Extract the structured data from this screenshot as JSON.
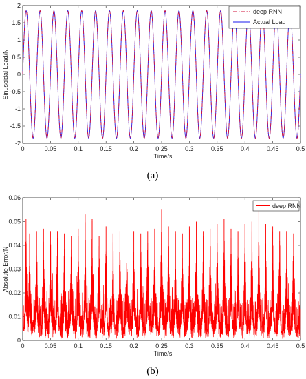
{
  "chart_data": [
    {
      "type": "line",
      "panel_label": "(a)",
      "xlabel": "Time/s",
      "ylabel": "Sinusoidal Load/N",
      "xlim": [
        0,
        0.5
      ],
      "ylim": [
        -2,
        2
      ],
      "x_ticks": [
        "0",
        "0.05",
        "0.1",
        "0.15",
        "0.2",
        "0.25",
        "0.3",
        "0.35",
        "0.4",
        "0.45",
        "0.5"
      ],
      "y_ticks": [
        "-2",
        "-1.5",
        "-1",
        "-0.5",
        "0",
        "0.5",
        "1",
        "1.5",
        "2"
      ],
      "legend_position": "top-right",
      "signal": {
        "amplitude": 1.85,
        "frequency_hz": 40,
        "phase_rad": 0
      },
      "series": [
        {
          "name": "deep RNN",
          "color": "#d0103a",
          "style": "dash-dot"
        },
        {
          "name": "Actual Load",
          "color": "#1a1aee",
          "style": "solid"
        }
      ]
    },
    {
      "type": "line",
      "panel_label": "(b)",
      "xlabel": "Time/s",
      "ylabel": "Absolute Error/N",
      "xlim": [
        0,
        0.5
      ],
      "ylim": [
        0,
        0.06
      ],
      "x_ticks": [
        "0",
        "0.05",
        "0.1",
        "0.15",
        "0.2",
        "0.25",
        "0.3",
        "0.35",
        "0.4",
        "0.45",
        "0.5"
      ],
      "y_ticks": [
        "0",
        "0.01",
        "0.02",
        "0.03",
        "0.04",
        "0.05",
        "0.06"
      ],
      "legend_position": "top-right",
      "series": [
        {
          "name": "deep RNN",
          "color": "#ff0000",
          "peak_times": [
            0.006,
            0.0125,
            0.025,
            0.0375,
            0.05,
            0.0625,
            0.075,
            0.0875,
            0.1,
            0.1125,
            0.125,
            0.1375,
            0.15,
            0.1625,
            0.175,
            0.1875,
            0.2,
            0.2125,
            0.225,
            0.2375,
            0.25,
            0.2625,
            0.275,
            0.2875,
            0.3,
            0.3125,
            0.325,
            0.3375,
            0.35,
            0.3625,
            0.375,
            0.3875,
            0.4,
            0.4125,
            0.425,
            0.4375,
            0.45,
            0.4625,
            0.475,
            0.4875
          ],
          "peak_values": [
            0.051,
            0.045,
            0.046,
            0.047,
            0.046,
            0.046,
            0.045,
            0.044,
            0.047,
            0.053,
            0.051,
            0.044,
            0.048,
            0.045,
            0.046,
            0.047,
            0.046,
            0.045,
            0.046,
            0.047,
            0.055,
            0.048,
            0.046,
            0.045,
            0.048,
            0.05,
            0.046,
            0.047,
            0.049,
            0.051,
            0.047,
            0.046,
            0.049,
            0.05,
            0.055,
            0.049,
            0.048,
            0.046,
            0.046,
            0.045
          ]
        }
      ]
    }
  ]
}
